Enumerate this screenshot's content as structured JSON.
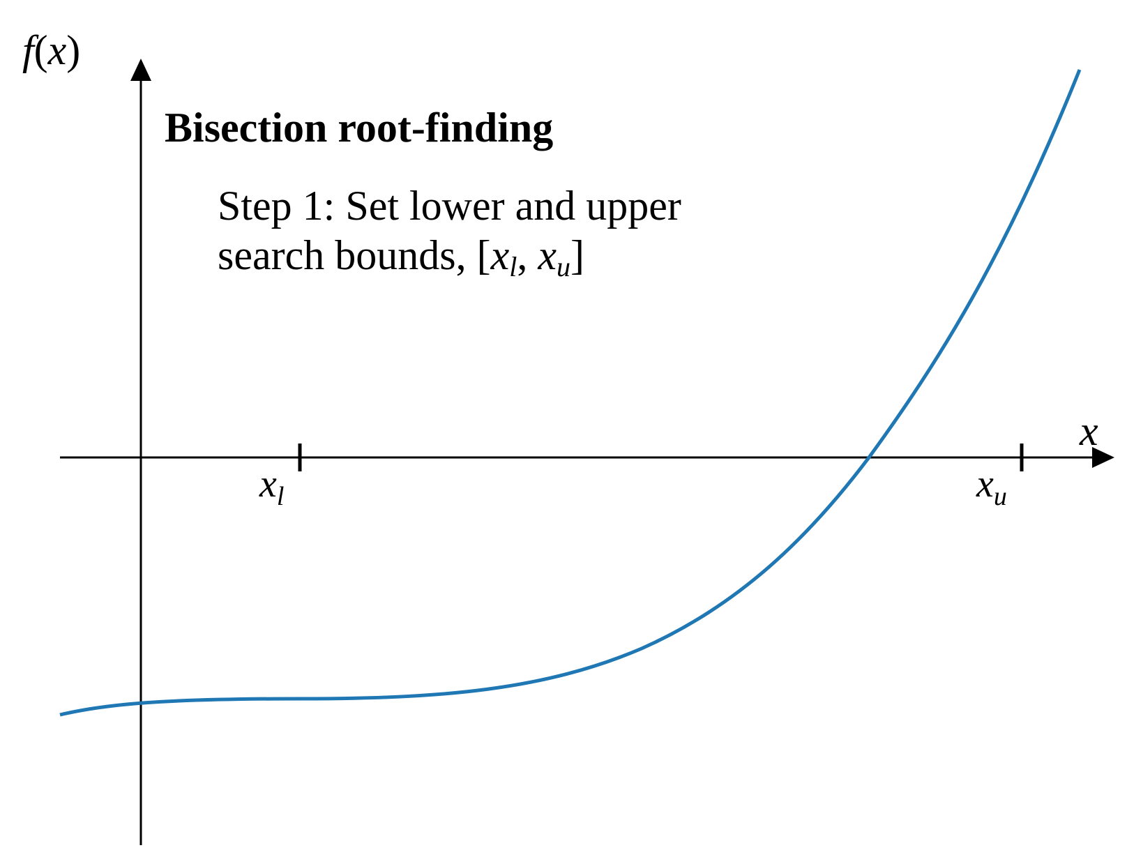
{
  "title": "Bisection root-finding",
  "step": {
    "line1": "Step 1: Set lower and upper",
    "line2_prefix": "search bounds, [",
    "line2_xl_base": "x",
    "line2_xl_sub": "l",
    "line2_sep": ", ",
    "line2_xu_base": "x",
    "line2_xu_sub": "u",
    "line2_suffix": "]"
  },
  "y_axis_label": {
    "func": "f",
    "open": "(",
    "var": "x",
    "close": ")"
  },
  "x_axis_label": "x",
  "ticks": {
    "lower": {
      "base": "x",
      "sub": "l"
    },
    "upper": {
      "base": "x",
      "sub": "u"
    }
  },
  "colors": {
    "curve": "#1f77b4",
    "axes": "#000000",
    "text": "#000000"
  },
  "function_shape": "cubic: flat plateau below the x-axis near the lower bound, rising steeply and crossing zero before the upper bound"
}
